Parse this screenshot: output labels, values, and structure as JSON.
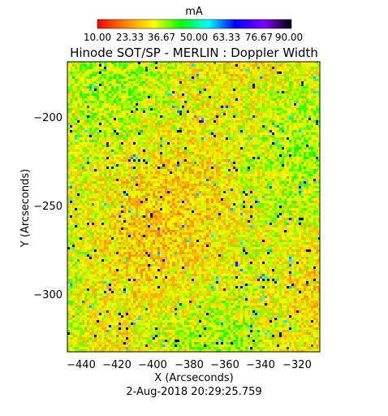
{
  "chart_data": {
    "type": "heatmap",
    "title": "Hinode SOT/SP - MERLIN : Doppler Width",
    "xlabel": "X (Arcseconds)",
    "ylabel": "Y (Arcseconds)",
    "timestamp": "2-Aug-2018 20:29:25.759",
    "colorbar": {
      "unit": "mA",
      "range": [
        10.0,
        90.0
      ],
      "tick_labels": [
        "10.00",
        "23.33",
        "36.67",
        "50.00",
        "63.33",
        "76.67",
        "90.00"
      ],
      "colormap": [
        "#ff0000",
        "#ff8000",
        "#ffff00",
        "#00ff00",
        "#00ffff",
        "#0000ff",
        "#8000ff",
        "#000000"
      ]
    },
    "x_ticks": [
      "−440",
      "−420",
      "−400",
      "−380",
      "−360",
      "−340",
      "−320"
    ],
    "y_ticks": [
      "−200",
      "−250",
      "−300"
    ],
    "xlim": [
      -447,
      -307
    ],
    "ylim": [
      -332,
      -167
    ],
    "grid": false,
    "field_description_values": {
      "dominant_range": [
        20,
        45
      ],
      "typical_value": 30
    }
  }
}
